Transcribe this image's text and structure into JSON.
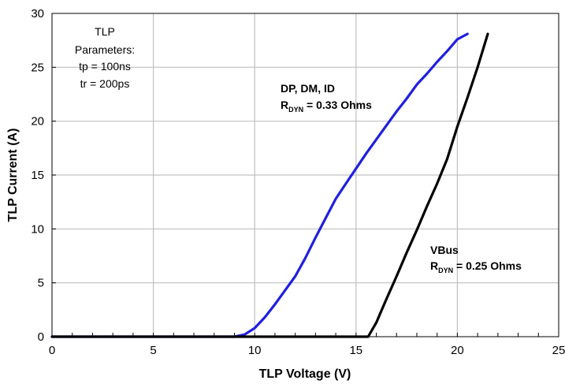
{
  "chart_data": {
    "type": "line",
    "xlabel": "TLP Voltage (V)",
    "ylabel": "TLP Current (A)",
    "xlim": [
      0,
      25
    ],
    "ylim": [
      0,
      30
    ],
    "x_ticks": [
      "0",
      "5",
      "10",
      "15",
      "20",
      "25"
    ],
    "y_ticks": [
      "0",
      "5",
      "10",
      "15",
      "20",
      "25",
      "30"
    ],
    "grid": true,
    "legend": "none",
    "annotations": {
      "params": [
        "TLP",
        "Parameters:",
        "tp = 100ns",
        "tr = 200ps"
      ],
      "dp_title": "DP, DM, ID",
      "dp_r": "R",
      "dp_sub": "DYN",
      "dp_val": " = 0.33 Ohms",
      "vbus_title": "VBus",
      "vbus_r": "R",
      "vbus_sub": "DYN",
      "vbus_val": " = 0.25 Ohms"
    },
    "series": [
      {
        "color": "#1f1fe0",
        "x": [
          0,
          9.0,
          9.5,
          10.0,
          10.5,
          11.0,
          11.5,
          12.0,
          12.5,
          13.0,
          13.5,
          14.0,
          14.5,
          15.0,
          15.5,
          16.0,
          16.5,
          17.0,
          17.5,
          18.0,
          18.5,
          19.0,
          19.5,
          20.0,
          20.5
        ],
        "y": [
          0,
          0,
          0.2,
          0.8,
          1.8,
          3.0,
          4.3,
          5.6,
          7.3,
          9.2,
          11.0,
          12.8,
          14.2,
          15.6,
          17.0,
          18.3,
          19.6,
          20.9,
          22.1,
          23.4,
          24.4,
          25.5,
          26.5,
          27.6,
          28.1
        ]
      },
      {
        "color": "#000000",
        "x": [
          0,
          15.6,
          16.0,
          16.5,
          17.0,
          17.5,
          18.0,
          18.5,
          19.0,
          19.5,
          20.0,
          20.5,
          21.0,
          21.5
        ],
        "y": [
          0,
          0,
          1.3,
          3.5,
          5.6,
          7.8,
          9.9,
          12.1,
          14.2,
          16.5,
          19.5,
          22.2,
          25.0,
          28.1
        ]
      }
    ]
  }
}
